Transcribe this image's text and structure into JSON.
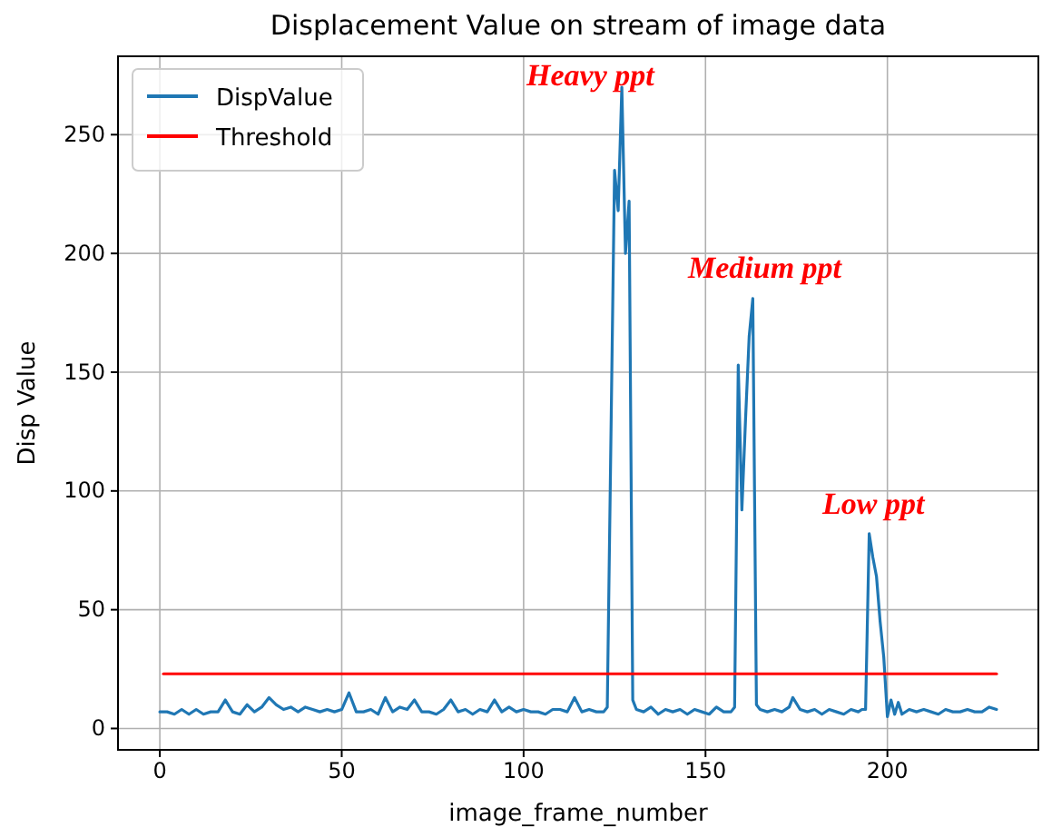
{
  "chart_data": {
    "type": "line",
    "title": "Displacement Value on stream of image data",
    "xlabel": "image_frame_number",
    "ylabel": "Disp Value",
    "xlim": [
      -11.5,
      241.5
    ],
    "ylim": [
      -9,
      283
    ],
    "xticks": [
      0,
      50,
      100,
      150,
      200
    ],
    "yticks": [
      0,
      50,
      100,
      150,
      200,
      250
    ],
    "grid": true,
    "legend": "top left",
    "line_style": "solid",
    "marker": "none",
    "series": [
      {
        "name": "DispValue",
        "color": "#1f77b4",
        "x": [
          0,
          2,
          4,
          6,
          8,
          10,
          12,
          14,
          16,
          18,
          20,
          22,
          24,
          26,
          28,
          30,
          32,
          34,
          36,
          38,
          40,
          42,
          44,
          46,
          48,
          50,
          52,
          54,
          56,
          58,
          60,
          62,
          64,
          66,
          68,
          70,
          72,
          74,
          76,
          78,
          80,
          82,
          84,
          86,
          88,
          90,
          92,
          94,
          96,
          98,
          100,
          102,
          104,
          106,
          108,
          110,
          112,
          114,
          116,
          118,
          120,
          122,
          123,
          125,
          126,
          127,
          128,
          129,
          130,
          131,
          133,
          135,
          137,
          139,
          141,
          143,
          145,
          147,
          149,
          151,
          153,
          155,
          157,
          158,
          159,
          160,
          161,
          162,
          163,
          164,
          165,
          167,
          169,
          171,
          173,
          174,
          176,
          178,
          180,
          182,
          184,
          186,
          188,
          190,
          192,
          193,
          194,
          195,
          196,
          197,
          198,
          199,
          200,
          201,
          202,
          203,
          204,
          206,
          208,
          210,
          212,
          214,
          216,
          218,
          220,
          222,
          224,
          226,
          228,
          230
        ],
        "values": [
          7,
          7,
          6,
          8,
          6,
          8,
          6,
          7,
          7,
          12,
          7,
          6,
          10,
          7,
          9,
          13,
          10,
          8,
          9,
          7,
          9,
          8,
          7,
          8,
          7,
          8,
          15,
          7,
          7,
          8,
          6,
          13,
          7,
          9,
          8,
          12,
          7,
          7,
          6,
          8,
          12,
          7,
          8,
          6,
          8,
          7,
          12,
          7,
          9,
          7,
          8,
          7,
          7,
          6,
          8,
          8,
          7,
          13,
          7,
          8,
          7,
          7,
          9,
          235,
          218,
          270,
          200,
          222,
          12,
          8,
          7,
          9,
          6,
          8,
          7,
          8,
          6,
          8,
          7,
          6,
          9,
          7,
          7,
          9,
          153,
          92,
          130,
          165,
          181,
          10,
          8,
          7,
          8,
          7,
          9,
          13,
          8,
          7,
          8,
          6,
          8,
          7,
          6,
          8,
          7,
          8,
          8,
          82,
          72,
          64,
          45,
          30,
          5,
          12,
          6,
          11,
          6,
          8,
          7,
          8,
          7,
          6,
          8,
          7,
          7,
          8,
          7,
          7,
          9,
          8
        ]
      },
      {
        "name": "Threshold",
        "color": "#ff0000",
        "x": [
          1,
          230
        ],
        "values": [
          23,
          23
        ]
      }
    ],
    "annotations": [
      "Heavy ppt",
      "Medium ppt",
      "Low ppt"
    ]
  }
}
